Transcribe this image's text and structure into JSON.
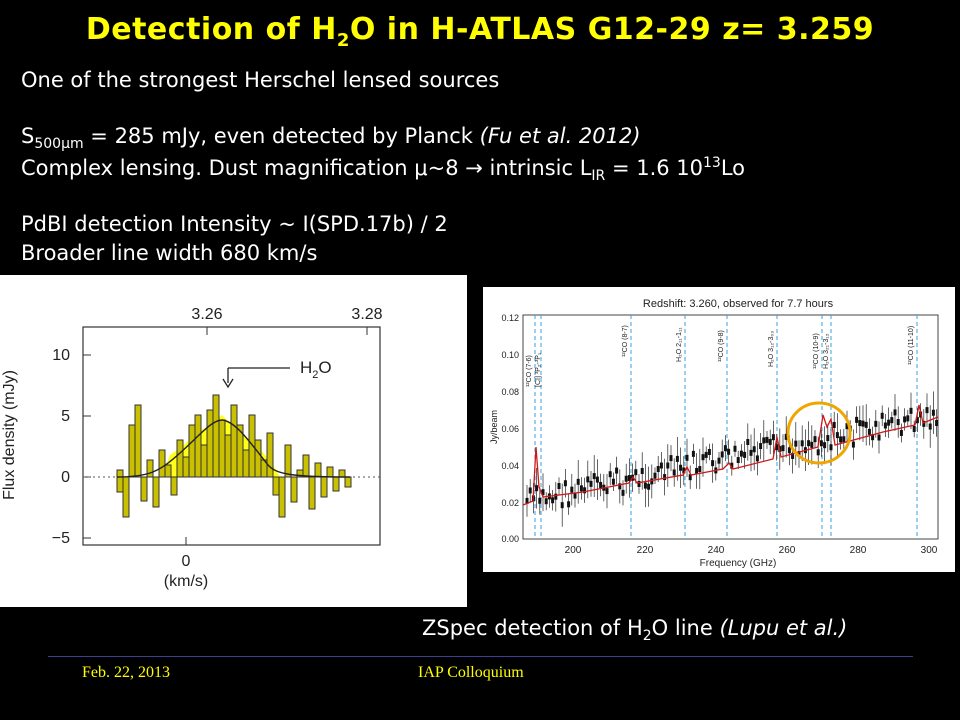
{
  "title": {
    "part1": "Detection of H",
    "sub": "2",
    "part2": "O in H-ATLAS G12-29  z= 3.259"
  },
  "lines": {
    "l1": "One of the  strongest Herschel lensed sources",
    "l2_a": "S",
    "l2_sub": "500μm",
    "l2_b": " = 285 mJy, even detected by Planck ",
    "l2_it": "(Fu et al. 2012)",
    "l3_a": "Complex lensing. Dust magnification μ~8  → intrinsic L",
    "l3_sub": "IR",
    "l3_b": " = 1.6 10",
    "l3_sup": "13",
    "l3_c": "Lo",
    "l4": "PdBI detection  Intensity ~ I(SPD.17b) / 2",
    "l5": "Broader line width  680 km/s"
  },
  "left_plot": {
    "top_ticks": [
      "3.26",
      "3.28"
    ],
    "y_ticks": [
      "10",
      "5",
      "0",
      "−5"
    ],
    "ylabel": "Flux density (mJy)",
    "label_a": "H",
    "label_sub": "2",
    "label_b": "O",
    "x_tick": "0",
    "x_unit": "(km/s)"
  },
  "right_plot": {
    "header": "Redshift: 3.260, observed for  7.7 hours",
    "ylabel": "Jy/beam",
    "xlabel": "Frequency (GHz)",
    "y_ticks": [
      "0.12",
      "0.10",
      "0.08",
      "0.06",
      "0.04",
      "0.02",
      "0.00"
    ],
    "x_ticks": [
      "200",
      "220",
      "240",
      "260",
      "280",
      "300"
    ],
    "line_labels": [
      "¹²CO (7-6)",
      "[CI] ³P₂-³P₁",
      "¹²CO (8-7)",
      "H₂O 2₁₁-1₁₁",
      "¹²CO (9-8)",
      "H₂O 3₁₂-3₀₃",
      "¹²CO (10-9)",
      "H₂O 3₂₁-3₁₂",
      "¹²CO (11-10)"
    ],
    "circle_color": "#f0a500"
  },
  "caption": {
    "a": "ZSpec detection of H",
    "sub": "2",
    "b": "O line ",
    "it": "(Lupu et al.)"
  },
  "footer": {
    "date": "Feb. 22, 2013",
    "event": "IAP Colloquium"
  }
}
